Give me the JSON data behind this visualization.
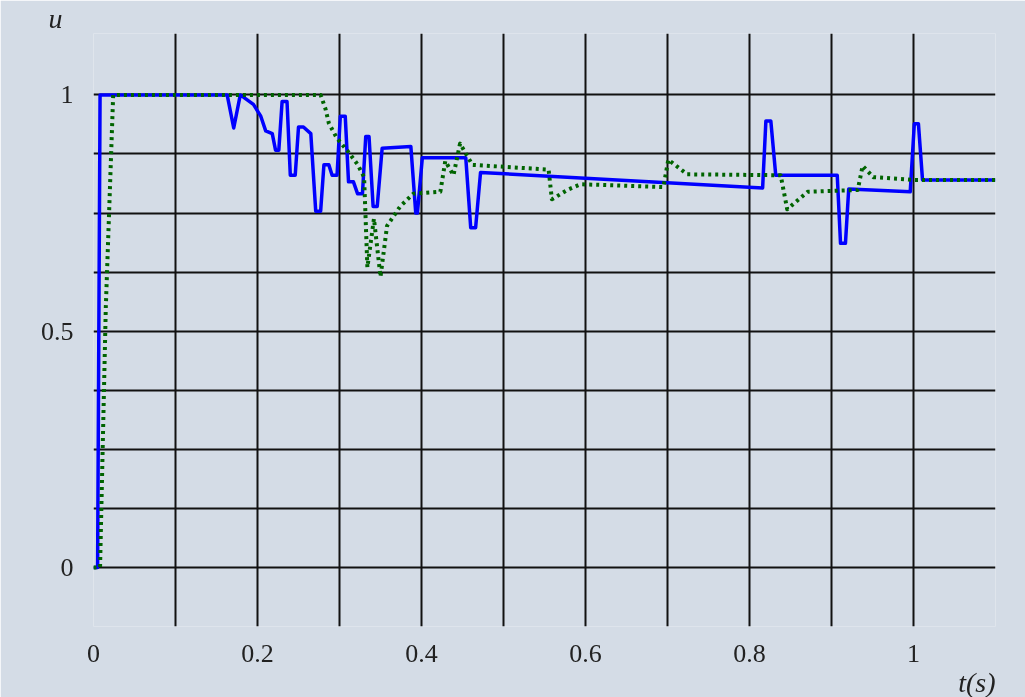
{
  "chart_data": {
    "type": "line",
    "xlabel": "t(s)",
    "ylabel": "u",
    "xlim": [
      0,
      1.1
    ],
    "ylim": [
      -0.125,
      1.13
    ],
    "xticks": [
      0,
      {
        "value": 0.1,
        "label": null
      },
      0.2,
      {
        "value": 0.3,
        "label": null
      },
      0.4,
      {
        "value": 0.5,
        "label": null
      },
      0.6,
      {
        "value": 0.7,
        "label": null
      },
      0.8,
      {
        "value": 0.9,
        "label": null
      },
      1,
      {
        "value": 1.1,
        "label": null
      }
    ],
    "yticks": [
      0,
      {
        "value": 0.125,
        "label": null
      },
      {
        "value": 0.25,
        "label": null
      },
      {
        "value": 0.375,
        "label": null
      },
      0.5,
      {
        "value": 0.625,
        "label": null
      },
      {
        "value": 0.75,
        "label": null
      },
      {
        "value": 0.875,
        "label": null
      },
      1
    ],
    "grid": true,
    "series": [
      {
        "color": "#0000ff",
        "line_style": "solid",
        "x": [
          0,
          0.005,
          0.008,
          0.163,
          0.171,
          0.179,
          0.187,
          0.195,
          0.204,
          0.21,
          0.218,
          0.222,
          0.226,
          0.23,
          0.236,
          0.24,
          0.246,
          0.25,
          0.256,
          0.265,
          0.271,
          0.277,
          0.281,
          0.287,
          0.291,
          0.297,
          0.301,
          0.307,
          0.311,
          0.317,
          0.322,
          0.328,
          0.332,
          0.336,
          0.341,
          0.346,
          0.352,
          0.387,
          0.393,
          0.395,
          0.401,
          0.454,
          0.46,
          0.466,
          0.472,
          0.816,
          0.82,
          0.826,
          0.832,
          0.907,
          0.911,
          0.917,
          0.921,
          0.996,
          1.001,
          1.006,
          1.011,
          1.1
        ],
        "values": [
          0,
          0,
          1,
          1,
          0.93,
          1,
          0.99,
          0.98,
          0.955,
          0.924,
          0.918,
          0.883,
          0.883,
          0.986,
          0.986,
          0.83,
          0.83,
          0.932,
          0.932,
          0.918,
          0.754,
          0.754,
          0.852,
          0.852,
          0.83,
          0.83,
          0.955,
          0.955,
          0.816,
          0.816,
          0.791,
          0.791,
          0.912,
          0.912,
          0.764,
          0.764,
          0.887,
          0.891,
          0.75,
          0.75,
          0.867,
          0.867,
          0.719,
          0.719,
          0.836,
          0.803,
          0.945,
          0.945,
          0.83,
          0.83,
          0.686,
          0.686,
          0.801,
          0.795,
          0.939,
          0.939,
          0.82,
          0.82
        ]
      },
      {
        "color": "#006400",
        "line_style": "dotted",
        "x": [
          0,
          0.008,
          0.015,
          0.024,
          0.277,
          0.283,
          0.287,
          0.297,
          0.31,
          0.322,
          0.33,
          0.334,
          0.342,
          0.35,
          0.358,
          0.374,
          0.39,
          0.423,
          0.429,
          0.439,
          0.447,
          0.462,
          0.555,
          0.559,
          0.578,
          0.594,
          0.695,
          0.701,
          0.724,
          0.838,
          0.846,
          0.871,
          0.932,
          0.938,
          0.951,
          1.0,
          1.1
        ],
        "values": [
          0,
          0,
          0.55,
          1,
          1,
          0.97,
          0.94,
          0.908,
          0.881,
          0.853,
          0.826,
          0.635,
          0.738,
          0.615,
          0.723,
          0.764,
          0.791,
          0.795,
          0.86,
          0.83,
          0.897,
          0.852,
          0.842,
          0.779,
          0.799,
          0.811,
          0.805,
          0.863,
          0.832,
          0.83,
          0.758,
          0.795,
          0.799,
          0.85,
          0.826,
          0.82,
          0.82
        ]
      }
    ]
  }
}
